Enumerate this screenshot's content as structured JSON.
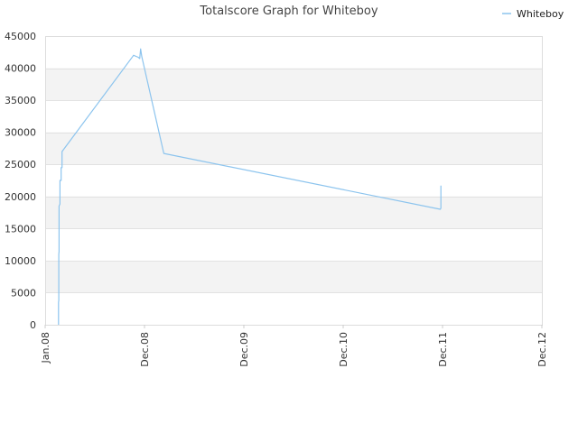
{
  "chart_data": {
    "type": "line",
    "title": "Totalscore Graph for Whiteboy",
    "xlabel": "",
    "ylabel": "",
    "x_tick_labels": [
      "Jan.08",
      "Dec.08",
      "Dec.09",
      "Dec.10",
      "Dec.11",
      "Dec.12"
    ],
    "y_tick_labels": [
      "0",
      "5000",
      "10000",
      "15000",
      "20000",
      "25000",
      "30000",
      "35000",
      "40000",
      "45000"
    ],
    "ylim": [
      0,
      45000
    ],
    "grid": true,
    "legend_position": "top-right",
    "series": [
      {
        "name": "Whiteboy",
        "color": "#8cc4ee",
        "points": [
          {
            "x": "2008-02-15",
            "y": 0
          },
          {
            "x": "2008-02-15",
            "y": 3500
          },
          {
            "x": "2008-02-16",
            "y": 3800
          },
          {
            "x": "2008-02-16",
            "y": 11000
          },
          {
            "x": "2008-02-17",
            "y": 11400
          },
          {
            "x": "2008-02-17",
            "y": 18500
          },
          {
            "x": "2008-02-20",
            "y": 18800
          },
          {
            "x": "2008-02-20",
            "y": 22500
          },
          {
            "x": "2008-02-24",
            "y": 22500
          },
          {
            "x": "2008-02-24",
            "y": 24500
          },
          {
            "x": "2008-02-27",
            "y": 24500
          },
          {
            "x": "2008-02-27",
            "y": 27000
          },
          {
            "x": "2008-10-25",
            "y": 42000
          },
          {
            "x": "2008-11-10",
            "y": 41700
          },
          {
            "x": "2008-11-15",
            "y": 41500
          },
          {
            "x": "2008-11-18",
            "y": 43000
          },
          {
            "x": "2008-11-22",
            "y": 41800
          },
          {
            "x": "2009-02-10",
            "y": 26700
          },
          {
            "x": "2011-11-23",
            "y": 18000
          },
          {
            "x": "2011-11-25",
            "y": 18200
          },
          {
            "x": "2011-11-25",
            "y": 21700
          }
        ]
      }
    ]
  }
}
